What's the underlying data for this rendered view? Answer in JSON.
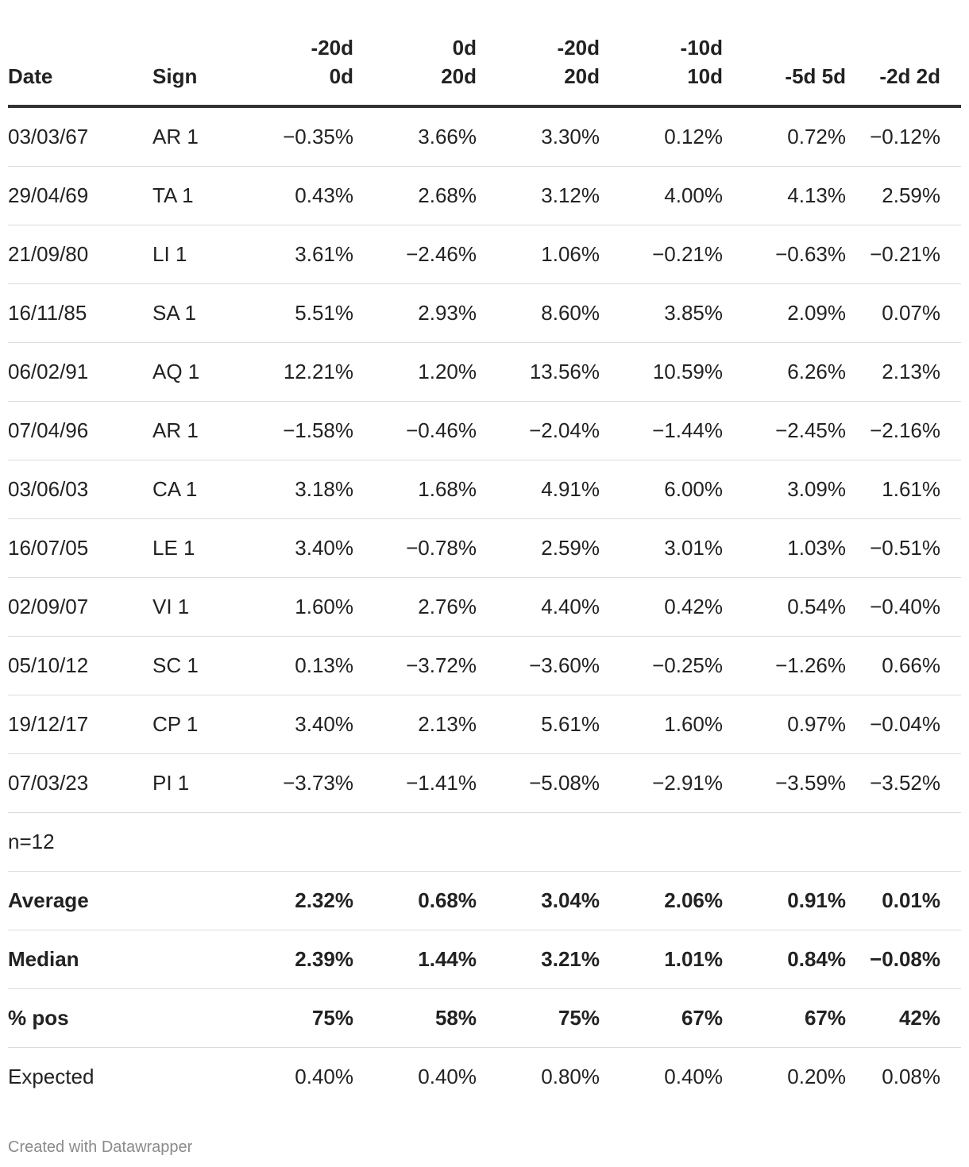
{
  "chart_data": {
    "type": "table",
    "columns": [
      "Date",
      "Sign",
      "-20d 0d",
      "0d 20d",
      "-20d 20d",
      "-10d 10d",
      "-5d 5d",
      "-2d 2d"
    ],
    "header_lines": [
      [
        "Date"
      ],
      [
        "Sign"
      ],
      [
        "-20d",
        "0d"
      ],
      [
        "0d",
        "20d"
      ],
      [
        "-20d",
        "20d"
      ],
      [
        "-10d",
        "10d"
      ],
      [
        "-5d 5d"
      ],
      [
        "-2d 2d"
      ]
    ],
    "rows": [
      [
        "03/03/67",
        "AR 1",
        "−0.35%",
        "3.66%",
        "3.30%",
        "0.12%",
        "0.72%",
        "−0.12%"
      ],
      [
        "29/04/69",
        "TA 1",
        "0.43%",
        "2.68%",
        "3.12%",
        "4.00%",
        "4.13%",
        "2.59%"
      ],
      [
        "21/09/80",
        "LI 1",
        "3.61%",
        "−2.46%",
        "1.06%",
        "−0.21%",
        "−0.63%",
        "−0.21%"
      ],
      [
        "16/11/85",
        "SA 1",
        "5.51%",
        "2.93%",
        "8.60%",
        "3.85%",
        "2.09%",
        "0.07%"
      ],
      [
        "06/02/91",
        "AQ 1",
        "12.21%",
        "1.20%",
        "13.56%",
        "10.59%",
        "6.26%",
        "2.13%"
      ],
      [
        "07/04/96",
        "AR 1",
        "−1.58%",
        "−0.46%",
        "−2.04%",
        "−1.44%",
        "−2.45%",
        "−2.16%"
      ],
      [
        "03/06/03",
        "CA 1",
        "3.18%",
        "1.68%",
        "4.91%",
        "6.00%",
        "3.09%",
        "1.61%"
      ],
      [
        "16/07/05",
        "LE 1",
        "3.40%",
        "−0.78%",
        "2.59%",
        "3.01%",
        "1.03%",
        "−0.51%"
      ],
      [
        "02/09/07",
        "VI 1",
        "1.60%",
        "2.76%",
        "4.40%",
        "0.42%",
        "0.54%",
        "−0.40%"
      ],
      [
        "05/10/12",
        "SC 1",
        "0.13%",
        "−3.72%",
        "−3.60%",
        "−0.25%",
        "−1.26%",
        "0.66%"
      ],
      [
        "19/12/17",
        "CP 1",
        "3.40%",
        "2.13%",
        "5.61%",
        "1.60%",
        "0.97%",
        "−0.04%"
      ],
      [
        "07/03/23",
        "PI 1",
        "−3.73%",
        "−1.41%",
        "−5.08%",
        "−2.91%",
        "−3.59%",
        "−3.52%"
      ]
    ],
    "summary_rows": [
      {
        "cells": [
          "n=12",
          "",
          "",
          "",
          "",
          "",
          "",
          ""
        ],
        "bold": false
      },
      {
        "cells": [
          "Average",
          "",
          "2.32%",
          "0.68%",
          "3.04%",
          "2.06%",
          "0.91%",
          "0.01%"
        ],
        "bold": true
      },
      {
        "cells": [
          "Median",
          "",
          "2.39%",
          "1.44%",
          "3.21%",
          "1.01%",
          "0.84%",
          "−0.08%"
        ],
        "bold": true
      },
      {
        "cells": [
          "% pos",
          "",
          "75%",
          "58%",
          "75%",
          "67%",
          "67%",
          "42%"
        ],
        "bold": true
      },
      {
        "cells": [
          "Expected",
          "",
          "0.40%",
          "0.40%",
          "0.80%",
          "0.40%",
          "0.20%",
          "0.08%"
        ],
        "bold": false
      }
    ]
  },
  "footer": {
    "credit": "Created with Datawrapper"
  },
  "colors": {
    "text": "#222222",
    "header_rule": "#333333",
    "row_rule": "#dcdcdc",
    "footer_text": "#8a8a8a"
  }
}
